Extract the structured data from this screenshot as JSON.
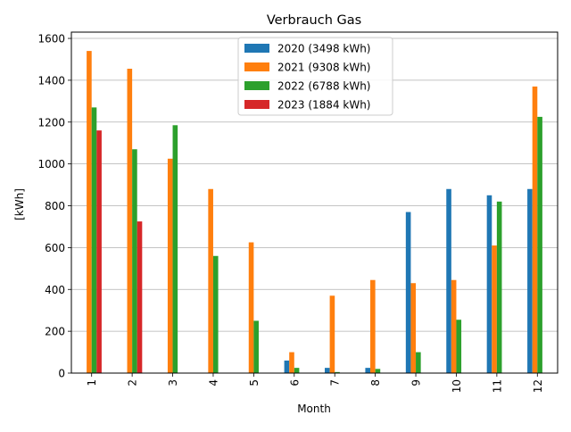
{
  "chart_data": {
    "type": "bar",
    "title": "Verbrauch Gas",
    "xlabel": "Month",
    "ylabel": "[kWh]",
    "categories": [
      "1",
      "2",
      "3",
      "4",
      "5",
      "6",
      "7",
      "8",
      "9",
      "10",
      "11",
      "12"
    ],
    "ylim": [
      0,
      1630
    ],
    "yticks": [
      "0",
      "200",
      "400",
      "600",
      "800",
      "1000",
      "1200",
      "1400",
      "1600"
    ],
    "grid": "y",
    "legend_position": "top-center",
    "series": [
      {
        "name": "2020 (3498 kWh)",
        "color": "#1f77b4",
        "values": [
          0,
          0,
          0,
          0,
          0,
          60,
          25,
          25,
          770,
          880,
          850,
          880
        ]
      },
      {
        "name": "2021 (9308 kWh)",
        "color": "#ff7f0e",
        "values": [
          1540,
          1455,
          1025,
          880,
          625,
          100,
          370,
          445,
          430,
          445,
          610,
          1370
        ]
      },
      {
        "name": "2022 (6788 kWh)",
        "color": "#2ca02c",
        "values": [
          1270,
          1070,
          1185,
          560,
          250,
          25,
          5,
          20,
          100,
          255,
          820,
          1225
        ]
      },
      {
        "name": "2023 (1884 kWh)",
        "color": "#d62728",
        "values": [
          1160,
          725,
          0,
          0,
          0,
          0,
          0,
          0,
          0,
          0,
          0,
          0
        ]
      }
    ]
  }
}
